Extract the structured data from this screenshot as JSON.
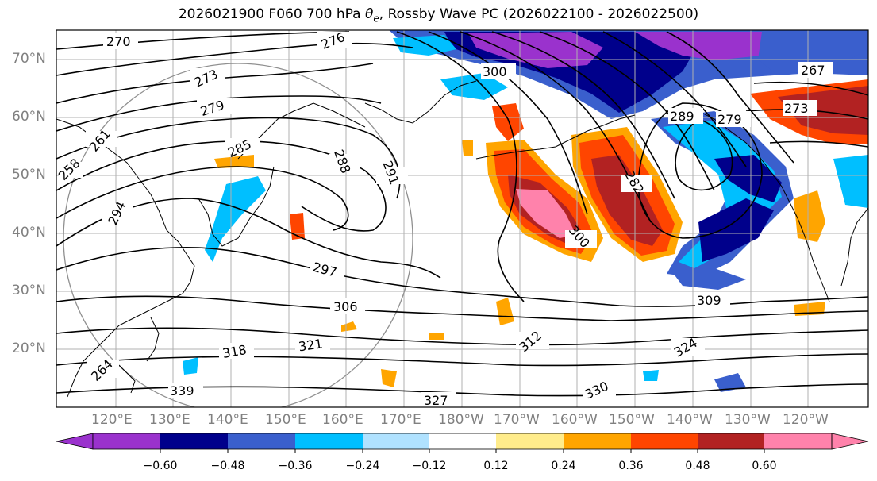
{
  "title": {
    "prefix": "2026021900 F060 700 hPa ",
    "theta": "θ",
    "sub": "e",
    "suffix": ", Rossby Wave PC (2026022100 - 2026022500)"
  },
  "map": {
    "lat_labels": [
      "70°N",
      "60°N",
      "50°N",
      "40°N",
      "30°N",
      "20°N"
    ],
    "lon_labels": [
      "120°E",
      "130°E",
      "140°E",
      "150°E",
      "160°E",
      "170°E",
      "180°W",
      "170°W",
      "160°W",
      "150°W",
      "140°W",
      "130°W",
      "120°W"
    ],
    "contour_labels": [
      "270",
      "273",
      "279",
      "276",
      "267",
      "261",
      "285",
      "288",
      "291",
      "300",
      "282",
      "294",
      "297",
      "306",
      "309",
      "312",
      "318",
      "321",
      "324",
      "327",
      "330",
      "339",
      "258",
      "264",
      "273",
      "289",
      "279",
      "300"
    ],
    "contour_color": "#000000",
    "coast_color": "#000000",
    "grid_color": "#b0b0b0"
  },
  "colorbar": {
    "tick_labels": [
      "−0.60",
      "−0.48",
      "−0.36",
      "−0.24",
      "−0.12",
      "0.12",
      "0.24",
      "0.36",
      "0.48",
      "0.60"
    ],
    "colors": [
      "#9a32cd",
      "#00008b",
      "#3a5fcd",
      "#00bfff",
      "#b0e2ff",
      "#ffffff",
      "#ffec8b",
      "#ffa500",
      "#ff4500",
      "#b22222",
      "#ff82ab"
    ]
  }
}
